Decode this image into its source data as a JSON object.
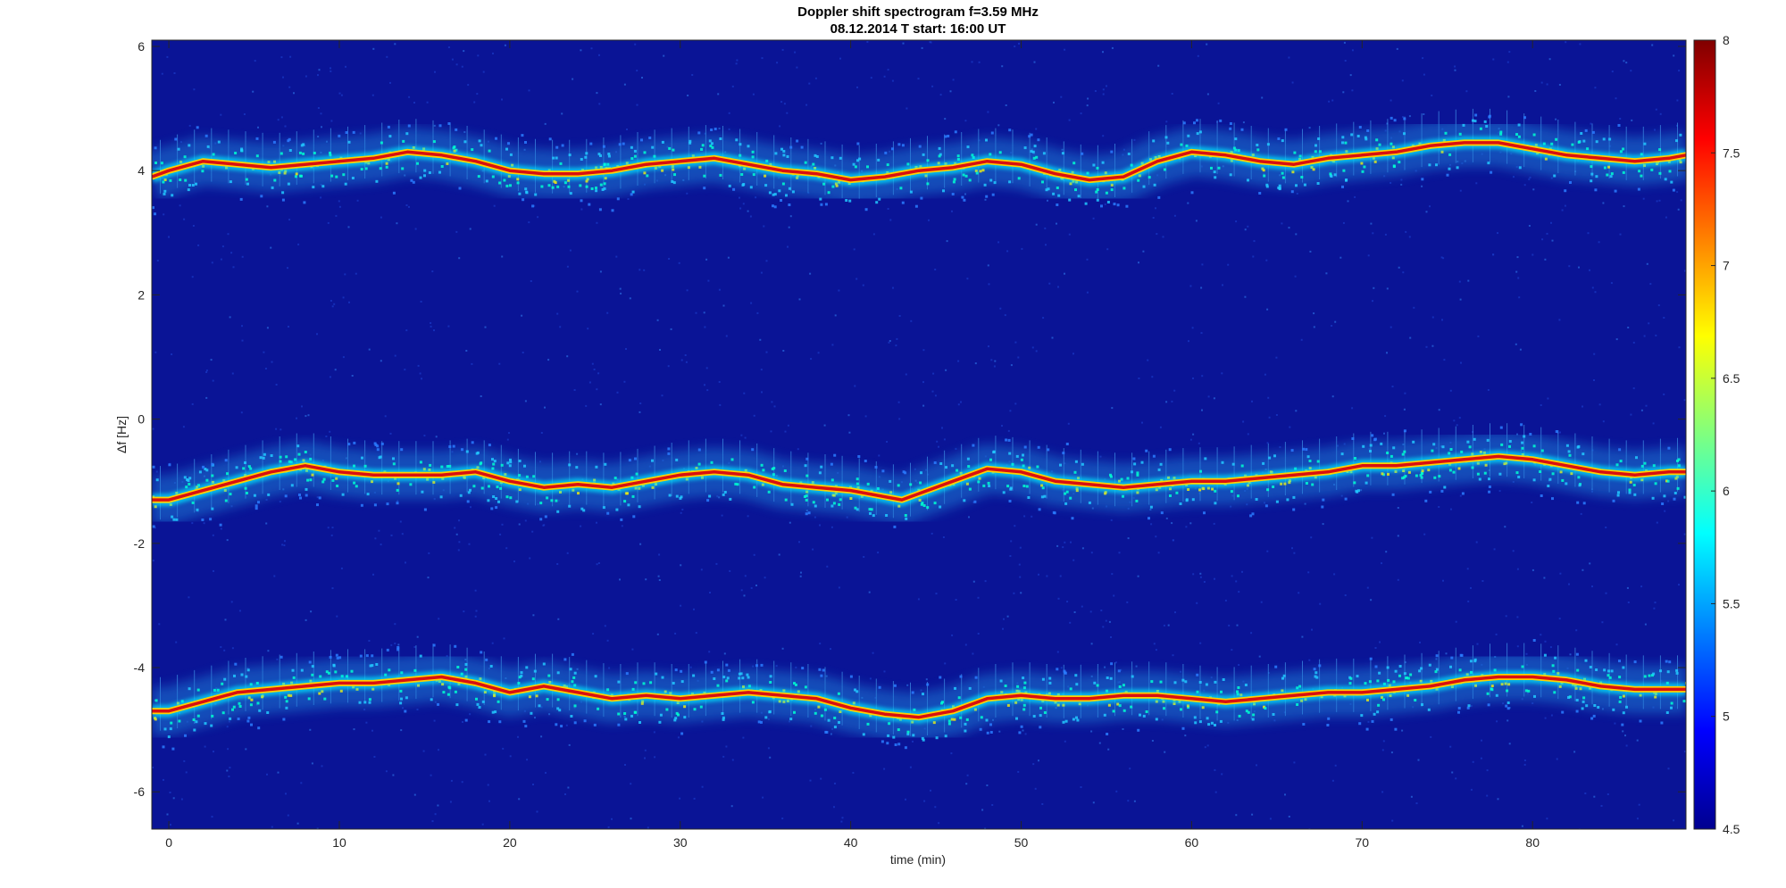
{
  "chart_data": {
    "type": "heatmap",
    "title": "Doppler shift spectrogram f=3.59 MHz",
    "subtitle": "08.12.2014   T start: 16:00 UT",
    "xlabel": "time (min)",
    "ylabel": "Δf [Hz]",
    "xlim": [
      -1,
      89
    ],
    "ylim": [
      -6.6,
      6.1
    ],
    "x_ticks": [
      0,
      10,
      20,
      30,
      40,
      50,
      60,
      70,
      80
    ],
    "x_tick_labels": [
      "0",
      "10",
      "20",
      "30",
      "40",
      "50",
      "60",
      "70",
      "80"
    ],
    "y_ticks": [
      -6,
      -4,
      -2,
      0,
      2,
      4,
      6
    ],
    "y_tick_labels": [
      "-6",
      "-4",
      "-2",
      "0",
      "2",
      "4",
      "6"
    ],
    "colorbar": {
      "colormap": "jet",
      "range": [
        4.5,
        8
      ],
      "ticks": [
        4.5,
        5,
        5.5,
        6,
        6.5,
        7,
        7.5,
        8
      ],
      "tick_labels": [
        "4.5",
        "5",
        "5.5",
        "6",
        "6.5",
        "7",
        "7.5",
        "8"
      ]
    },
    "grid": false,
    "series": [
      {
        "x": [
          -1,
          0,
          2,
          4,
          6,
          8,
          10,
          12,
          14,
          16,
          18,
          20,
          22,
          24,
          26,
          28,
          30,
          32,
          34,
          36,
          38,
          40,
          42,
          44,
          46,
          48,
          50,
          52,
          54,
          56,
          58,
          60,
          62,
          64,
          66,
          68,
          70,
          72,
          74,
          76,
          78,
          80,
          82,
          84,
          86,
          88,
          89
        ],
        "y": [
          3.9,
          4.0,
          4.15,
          4.1,
          4.05,
          4.1,
          4.15,
          4.2,
          4.3,
          4.25,
          4.15,
          4.0,
          3.95,
          3.95,
          4.0,
          4.1,
          4.15,
          4.2,
          4.1,
          4.0,
          3.95,
          3.85,
          3.9,
          4.0,
          4.05,
          4.15,
          4.1,
          3.95,
          3.85,
          3.9,
          4.15,
          4.3,
          4.25,
          4.15,
          4.1,
          4.2,
          4.25,
          4.3,
          4.4,
          4.45,
          4.45,
          4.35,
          4.25,
          4.2,
          4.15,
          4.2,
          4.25
        ]
      },
      {
        "x": [
          -1,
          0,
          2,
          4,
          6,
          8,
          10,
          12,
          14,
          16,
          18,
          20,
          22,
          24,
          26,
          28,
          30,
          32,
          34,
          36,
          38,
          40,
          42,
          43,
          44,
          46,
          48,
          50,
          52,
          54,
          56,
          58,
          60,
          62,
          64,
          66,
          68,
          70,
          72,
          74,
          76,
          78,
          80,
          82,
          84,
          86,
          88,
          89
        ],
        "y": [
          -1.3,
          -1.3,
          -1.15,
          -1.0,
          -0.85,
          -0.75,
          -0.85,
          -0.9,
          -0.9,
          -0.9,
          -0.85,
          -1.0,
          -1.1,
          -1.05,
          -1.1,
          -1.0,
          -0.9,
          -0.85,
          -0.9,
          -1.05,
          -1.1,
          -1.15,
          -1.25,
          -1.3,
          -1.2,
          -1.0,
          -0.8,
          -0.85,
          -1.0,
          -1.05,
          -1.1,
          -1.05,
          -1.0,
          -1.0,
          -0.95,
          -0.9,
          -0.85,
          -0.75,
          -0.75,
          -0.7,
          -0.65,
          -0.6,
          -0.65,
          -0.75,
          -0.85,
          -0.9,
          -0.85,
          -0.85
        ]
      },
      {
        "x": [
          -1,
          0,
          2,
          4,
          6,
          8,
          10,
          12,
          14,
          16,
          18,
          20,
          22,
          24,
          26,
          28,
          30,
          32,
          34,
          36,
          38,
          40,
          42,
          44,
          46,
          48,
          50,
          52,
          54,
          56,
          58,
          60,
          62,
          64,
          66,
          68,
          70,
          72,
          74,
          76,
          78,
          80,
          82,
          84,
          86,
          88,
          89
        ],
        "y": [
          -4.7,
          -4.7,
          -4.55,
          -4.4,
          -4.35,
          -4.3,
          -4.25,
          -4.25,
          -4.2,
          -4.15,
          -4.25,
          -4.4,
          -4.3,
          -4.4,
          -4.5,
          -4.45,
          -4.5,
          -4.45,
          -4.4,
          -4.45,
          -4.5,
          -4.65,
          -4.75,
          -4.8,
          -4.7,
          -4.5,
          -4.45,
          -4.5,
          -4.5,
          -4.45,
          -4.45,
          -4.5,
          -4.55,
          -4.5,
          -4.45,
          -4.4,
          -4.4,
          -4.35,
          -4.3,
          -4.2,
          -4.15,
          -4.15,
          -4.2,
          -4.3,
          -4.35,
          -4.35,
          -4.35
        ]
      }
    ]
  }
}
